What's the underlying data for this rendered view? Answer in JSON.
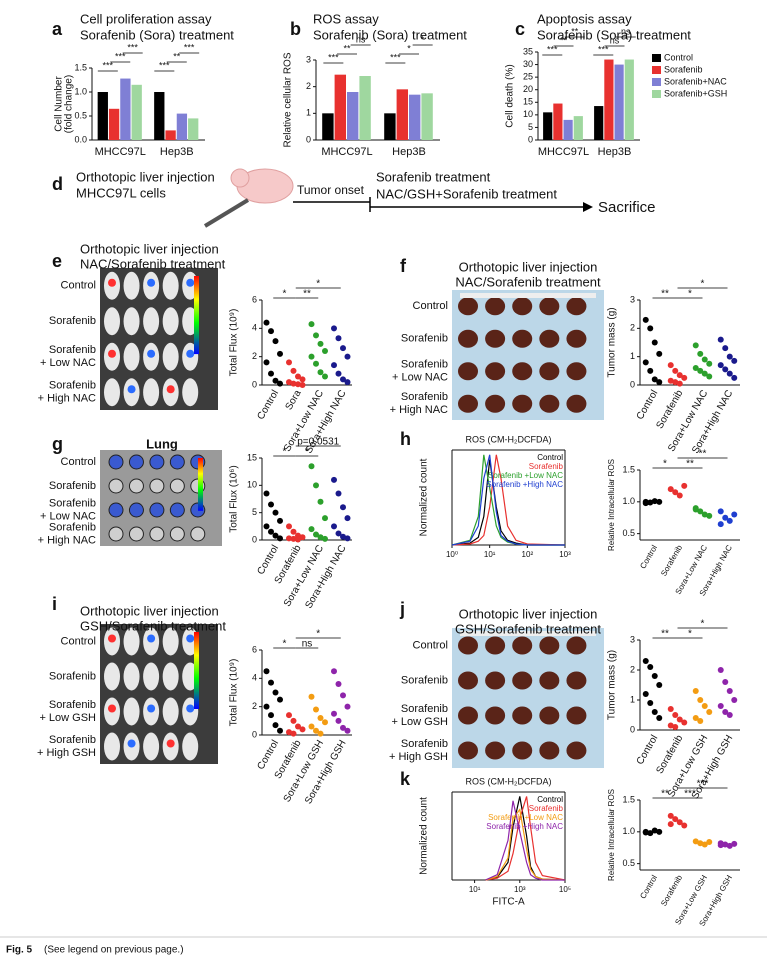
{
  "labels": [
    "a",
    "b",
    "c",
    "d",
    "e",
    "f",
    "g",
    "h",
    "i",
    "j",
    "k"
  ],
  "diagram": {
    "injection": [
      "Orthotopic liver injection",
      "MHCC97L cells"
    ],
    "onset": "Tumor onset",
    "treatment": [
      "Sorafenib treatment",
      "NAC/GSH+Sorafenib treatment"
    ],
    "end": "Sacrifice"
  },
  "panels": {
    "e": {
      "title": [
        "Orthotopic liver injection",
        "NAC/Sorafenib treatment"
      ],
      "rows": [
        [
          "Control"
        ],
        [
          "Sorafenib"
        ],
        [
          "Sorafenib",
          "+ Low NAC"
        ],
        [
          "Sorafenib",
          "+ High NAC"
        ]
      ]
    },
    "f": {
      "title": [
        "Orthotopic liver injection",
        "NAC/Sorafenib treatment"
      ],
      "rows": [
        [
          "Control"
        ],
        [
          "Sorafenib"
        ],
        [
          "Sorafenib",
          "+ Low NAC"
        ],
        [
          "Sorafenib",
          "+ High NAC"
        ]
      ]
    },
    "g": {
      "title": [
        "Lung"
      ],
      "rows": [
        [
          "Control"
        ],
        [
          "Sorafenib"
        ],
        [
          "Sorafenib",
          "+ Low NAC"
        ],
        [
          "Sorafenib",
          "+ High NAC"
        ]
      ]
    },
    "i": {
      "title": [
        "Orthotopic liver injection",
        "GSH/Sorafenib treatment"
      ],
      "rows": [
        [
          "Control"
        ],
        [
          "Sorafenib"
        ],
        [
          "Sorafenib",
          "+ Low GSH"
        ],
        [
          "Sorafenib",
          "+ High GSH"
        ]
      ]
    },
    "j": {
      "title": [
        "Orthotopic liver injection",
        "GSH/Sorafenib treatment"
      ],
      "rows": [
        [
          "Control"
        ],
        [
          "Sorafenib"
        ],
        [
          "Sorafenib",
          "+ Low GSH"
        ],
        [
          "Sorafenib",
          "+ High GSH"
        ]
      ]
    }
  },
  "caption": {
    "label": "Fig. 5",
    "text": "(See legend on previous page.)"
  },
  "chart_data": [
    {
      "type": "bar",
      "title": [
        "Cell proliferation assay",
        "Sorafenib (Sora) treatment"
      ],
      "ylabel": [
        "Cell Number",
        "(fold change)"
      ],
      "categories": [
        "MHCC97L",
        "Hep3B"
      ],
      "series": [
        {
          "name": "Control",
          "color": "#000000",
          "values": [
            1.0,
            1.0
          ]
        },
        {
          "name": "Sorafenib",
          "color": "#e8312f",
          "values": [
            0.65,
            0.2
          ]
        },
        {
          "name": "Sorafenib+NAC",
          "color": "#7f7fd5",
          "values": [
            1.28,
            0.55
          ]
        },
        {
          "name": "Sorafenib+GSH",
          "color": "#9fd79f",
          "values": [
            1.15,
            0.45
          ]
        }
      ],
      "ylim": [
        0,
        1.5
      ],
      "yticks": [
        {
          "value": 0,
          "label": "0.0"
        },
        0.5,
        {
          "value": 1,
          "label": "1.0"
        },
        1.5
      ],
      "annotations": [
        "***",
        "***",
        "***",
        "***",
        "**",
        "***"
      ]
    },
    {
      "type": "bar",
      "title": [
        "ROS assay",
        "Sorafenib (Sora) treatment"
      ],
      "ylabel": [
        "Relative cellular ROS"
      ],
      "categories": [
        "MHCC97L",
        "Hep3B"
      ],
      "series": [
        {
          "name": "Control",
          "color": "#000000",
          "values": [
            1.0,
            1.0
          ]
        },
        {
          "name": "Sorafenib",
          "color": "#e8312f",
          "values": [
            2.45,
            1.9
          ]
        },
        {
          "name": "Sorafenib+NAC",
          "color": "#7f7fd5",
          "values": [
            1.8,
            1.7
          ]
        },
        {
          "name": "Sorafenib+GSH",
          "color": "#9fd79f",
          "values": [
            2.4,
            1.75
          ]
        }
      ],
      "ylim": [
        0,
        3
      ],
      "yticks": [
        0,
        1,
        2,
        3
      ],
      "annotations": [
        "***",
        "**",
        "ns",
        "***",
        "*",
        "*"
      ]
    },
    {
      "type": "bar",
      "title": [
        "Apoptosis assay",
        "Sorafenib (Sora) treatment"
      ],
      "ylabel": [
        "Cell death (%)"
      ],
      "categories": [
        "MHCC97L",
        "Hep3B"
      ],
      "legend": true,
      "series": [
        {
          "name": "Control",
          "color": "#000000",
          "values": [
            11,
            13.5
          ]
        },
        {
          "name": "Sorafenib",
          "color": "#e8312f",
          "values": [
            14.5,
            32
          ]
        },
        {
          "name": "Sorafenib+NAC",
          "color": "#7f7fd5",
          "values": [
            8,
            30
          ]
        },
        {
          "name": "Sorafenib+GSH",
          "color": "#9fd79f",
          "values": [
            9.5,
            32
          ]
        }
      ],
      "ylim": [
        0,
        35
      ],
      "yticks": [
        0,
        5,
        10,
        15,
        20,
        25,
        30,
        35
      ],
      "annotations": [
        "***",
        "**",
        "**",
        "***",
        "ns",
        "ns"
      ]
    },
    {
      "type": "strip",
      "ylabel": [
        "Total Flux (10⁹)"
      ],
      "categories": [
        "Control",
        "Sora",
        "Sora+Low NAC",
        "Sora+High NAC"
      ],
      "colors": [
        "#000000",
        "#e8312f",
        "#2ca02c",
        "#1a1a8c"
      ],
      "points": [
        [
          4.4,
          3.8,
          3.1,
          2.2,
          1.6,
          0.8,
          0.3,
          0.1
        ],
        [
          1.6,
          1.0,
          0.6,
          0.4,
          0.2,
          0.1,
          0.05,
          0.0
        ],
        [
          4.3,
          3.5,
          2.9,
          2.4,
          2.0,
          1.5,
          0.9,
          0.6
        ],
        [
          4.0,
          3.3,
          2.6,
          2.0,
          1.4,
          0.8,
          0.4,
          0.2
        ]
      ],
      "ylim": [
        0,
        6
      ],
      "yticks": [
        0,
        2,
        4,
        6
      ],
      "annotations": [
        "*",
        "**",
        "*"
      ]
    },
    {
      "type": "strip",
      "ylabel": [
        "Tumor mass (g)"
      ],
      "categories": [
        "Control",
        "Sorafenib",
        "Sora+Low NAC",
        "Sora+High NAC"
      ],
      "colors": [
        "#000000",
        "#e8312f",
        "#2ca02c",
        "#1a1a8c"
      ],
      "points": [
        [
          2.3,
          2.0,
          1.5,
          1.1,
          0.8,
          0.5,
          0.2,
          0.1
        ],
        [
          0.7,
          0.5,
          0.35,
          0.25,
          0.15,
          0.1,
          0.05
        ],
        [
          1.4,
          1.1,
          0.9,
          0.75,
          0.6,
          0.5,
          0.4,
          0.3
        ],
        [
          1.6,
          1.3,
          1.0,
          0.85,
          0.7,
          0.55,
          0.4,
          0.25
        ]
      ],
      "ylim": [
        0,
        3
      ],
      "yticks": [
        0,
        1,
        2,
        3
      ],
      "annotations": [
        "**",
        "*",
        "*"
      ]
    },
    {
      "type": "strip",
      "ylabel": [
        "Total Flux (10⁶)"
      ],
      "categories": [
        "Control",
        "Sorafenib",
        "Sora+Low NAC",
        "Sora+High NAC"
      ],
      "colors": [
        "#000000",
        "#e8312f",
        "#2ca02c",
        "#1a1a8c"
      ],
      "points": [
        [
          8.5,
          6.5,
          5,
          3.5,
          2.5,
          1.5,
          0.8,
          0.3
        ],
        [
          2.5,
          1.5,
          0.8,
          0.5,
          0.3,
          0.2,
          0.1
        ],
        [
          13.5,
          10,
          7,
          4,
          2,
          1,
          0.5,
          0.2
        ],
        [
          11,
          8.5,
          6,
          4,
          2.5,
          1.2,
          0.6,
          0.3
        ]
      ],
      "ylim": [
        0,
        15
      ],
      "yticks": [
        0,
        5,
        10,
        15
      ],
      "annotations": [
        "*",
        "*",
        "p=0.0531"
      ]
    },
    {
      "type": "flow",
      "title": [
        "ROS (CM-H₂DCFDA)"
      ],
      "ylabel": [
        "Normalized count"
      ],
      "xlim": [
        1,
        1000
      ],
      "xticks": [
        {
          "value": 1,
          "label": "10⁰"
        },
        {
          "value": 10,
          "label": "10¹"
        },
        {
          "value": 100,
          "label": "10²"
        },
        {
          "value": 1000,
          "label": "10³"
        }
      ],
      "ylim": [
        0,
        100
      ],
      "x": [
        1,
        3,
        5,
        7,
        10,
        15,
        20,
        30,
        50,
        100,
        1000
      ],
      "series": [
        {
          "name": "Control",
          "color": "#000000",
          "values": [
            0,
            2,
            8,
            30,
            90,
            40,
            15,
            5,
            2,
            0,
            0
          ]
        },
        {
          "name": "Sorafenib",
          "color": "#e8312f",
          "values": [
            0,
            1,
            4,
            10,
            40,
            95,
            70,
            20,
            5,
            1,
            0
          ]
        },
        {
          "name": "Sorafenib +Low NAC",
          "color": "#2ca02c",
          "values": [
            0,
            5,
            30,
            95,
            60,
            20,
            8,
            3,
            1,
            0,
            0
          ]
        },
        {
          "name": "Sorafenib +High NAC",
          "color": "#1f3fd0",
          "values": [
            0,
            4,
            20,
            70,
            95,
            35,
            10,
            4,
            1,
            0,
            0
          ]
        }
      ]
    },
    {
      "type": "strip",
      "ylabel": [
        "Relative Intracellular ROS"
      ],
      "categories": [
        "Control",
        "Sorafenib",
        "Sora+Low NAC",
        "Sora+High NAC"
      ],
      "colors": [
        "#000000",
        "#e8312f",
        "#2ca02c",
        "#1f3fd0"
      ],
      "points": [
        [
          1.0,
          0.99,
          1.01,
          1.0,
          0.98
        ],
        [
          1.2,
          1.15,
          1.1,
          1.25
        ],
        [
          0.9,
          0.85,
          0.8,
          0.78,
          0.88
        ],
        [
          0.85,
          0.75,
          0.7,
          0.8,
          0.65
        ]
      ],
      "ylim": [
        0.4,
        1.5
      ],
      "yticks": [
        0.5,
        {
          "value": 1,
          "label": "1.0"
        },
        1.5
      ],
      "annotations": [
        "*",
        "**",
        "**"
      ]
    },
    {
      "type": "strip",
      "ylabel": [
        "Total Flux (10⁹)"
      ],
      "categories": [
        "Control",
        "Sorafenib",
        "Sora+Low GSH",
        "Sora+High GSH"
      ],
      "colors": [
        "#000000",
        "#e8312f",
        "#f39c12",
        "#8e24aa"
      ],
      "points": [
        [
          4.5,
          3.7,
          3.0,
          2.5,
          2.0,
          1.4,
          0.7,
          0.3
        ],
        [
          1.4,
          1.0,
          0.6,
          0.4,
          0.2,
          0.1
        ],
        [
          2.7,
          1.8,
          1.2,
          0.9,
          0.6,
          0.3,
          0.1
        ],
        [
          4.5,
          3.6,
          2.8,
          2.0,
          1.5,
          1.0,
          0.5,
          0.3
        ]
      ],
      "ylim": [
        0,
        6
      ],
      "yticks": [
        0,
        2,
        4,
        6
      ],
      "annotations": [
        "*",
        "ns",
        "*"
      ]
    },
    {
      "type": "strip",
      "ylabel": [
        "Tumor mass (g)"
      ],
      "categories": [
        "Control",
        "Sorafenib",
        "Sora+Low GSH",
        "Sora+High GSH"
      ],
      "colors": [
        "#000000",
        "#e8312f",
        "#f39c12",
        "#8e24aa"
      ],
      "points": [
        [
          2.3,
          2.1,
          1.8,
          1.5,
          1.2,
          0.9,
          0.6,
          0.4
        ],
        [
          0.7,
          0.5,
          0.35,
          0.25,
          0.15,
          0.1
        ],
        [
          1.3,
          1.0,
          0.8,
          0.6,
          0.4,
          0.3
        ],
        [
          2.0,
          1.6,
          1.3,
          1.0,
          0.8,
          0.6,
          0.5
        ]
      ],
      "ylim": [
        0,
        3
      ],
      "yticks": [
        0,
        1,
        2,
        3
      ],
      "annotations": [
        "**",
        "*",
        "*"
      ]
    },
    {
      "type": "flow",
      "title": [
        "ROS (CM-H₂DCFDA)"
      ],
      "ylabel": [
        "Normalized count"
      ],
      "xlabel": "FITC-A",
      "xlim": [
        1,
        100000
      ],
      "xticks": [
        {
          "value": 10,
          "label": "10¹"
        },
        {
          "value": 1000,
          "label": "10³"
        },
        {
          "value": 100000,
          "label": "10⁵"
        }
      ],
      "ylim": [
        0,
        100
      ],
      "x": [
        30,
        100,
        300,
        500,
        1000,
        2000,
        3000,
        5000,
        10000,
        100000
      ],
      "series": [
        {
          "name": "Control",
          "color": "#000000",
          "values": [
            0,
            3,
            20,
            60,
            95,
            50,
            15,
            4,
            1,
            0
          ]
        },
        {
          "name": "Sorafenib",
          "color": "#e8312f",
          "values": [
            0,
            2,
            10,
            30,
            70,
            95,
            60,
            20,
            5,
            0
          ]
        },
        {
          "name": "Sorafenib +Low NAC",
          "color": "#f39c12",
          "values": [
            0,
            4,
            25,
            70,
            80,
            35,
            12,
            4,
            1,
            0
          ]
        },
        {
          "name": "Sorafenib +High NAC",
          "color": "#8e24aa",
          "values": [
            0,
            6,
            45,
            90,
            55,
            20,
            6,
            2,
            0,
            0
          ]
        }
      ]
    },
    {
      "type": "strip",
      "ylabel": [
        "Relative Intracellular ROS"
      ],
      "categories": [
        "Control",
        "Sorafenib",
        "Sora+Low GSH",
        "Sora+High GSH"
      ],
      "colors": [
        "#000000",
        "#e8312f",
        "#f39c12",
        "#8e24aa"
      ],
      "points": [
        [
          1.0,
          0.98,
          1.02,
          1.0,
          0.99
        ],
        [
          1.25,
          1.2,
          1.15,
          1.1,
          1.12
        ],
        [
          0.85,
          0.82,
          0.8,
          0.84
        ],
        [
          0.82,
          0.8,
          0.78,
          0.81,
          0.79
        ]
      ],
      "ylim": [
        0.4,
        1.5
      ],
      "yticks": [
        0.5,
        {
          "value": 1,
          "label": "1.0"
        },
        1.5
      ],
      "annotations": [
        "**",
        "***",
        "***"
      ]
    }
  ]
}
